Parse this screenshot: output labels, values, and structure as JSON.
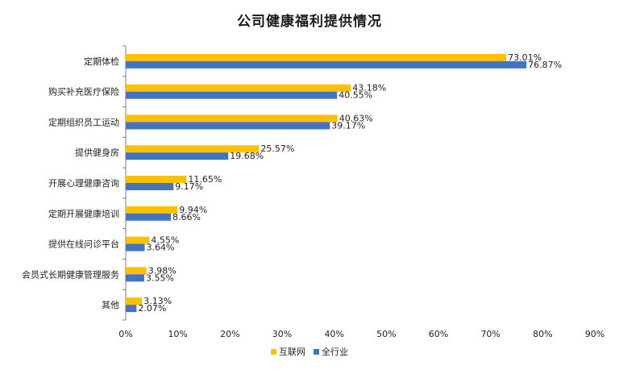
{
  "chart_data": {
    "type": "bar",
    "orientation": "horizontal",
    "title": "公司健康福利提供情况",
    "categories": [
      "定期体检",
      "购买补充医疗保险",
      "定期组织员工运动",
      "提供健身房",
      "开展心理健康咨询",
      "定期开展健康培训",
      "提供在线问诊平台",
      "会员式长期健康管理服务",
      "其他"
    ],
    "series": [
      {
        "name": "互联网",
        "color": "#FFC000",
        "values": [
          73.01,
          43.18,
          40.63,
          25.57,
          11.65,
          9.94,
          4.55,
          3.98,
          3.13
        ],
        "labels": [
          "73.01%",
          "43.18%",
          "40.63%",
          "25.57%",
          "11.65%",
          "9.94%",
          "4.55%",
          "3.98%",
          "3.13%"
        ]
      },
      {
        "name": "全行业",
        "color": "#4472C4",
        "values": [
          76.87,
          40.55,
          39.17,
          19.68,
          9.17,
          8.66,
          3.64,
          3.55,
          2.07
        ],
        "labels": [
          "76.87%",
          "40.55%",
          "39.17%",
          "19.68%",
          "9.17%",
          "8.66%",
          "3.64%",
          "3.55%",
          "2.07%"
        ]
      }
    ],
    "xlim": [
      0,
      90
    ],
    "x_ticks": [
      "0%",
      "10%",
      "20%",
      "30%",
      "40%",
      "50%",
      "60%",
      "70%",
      "80%",
      "90%"
    ],
    "grid": false,
    "legend_position": "bottom"
  }
}
